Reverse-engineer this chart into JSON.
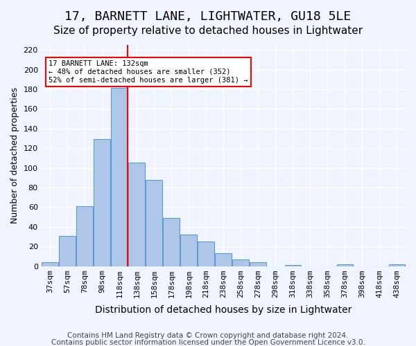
{
  "title1": "17, BARNETT LANE, LIGHTWATER, GU18 5LE",
  "title2": "Size of property relative to detached houses in Lightwater",
  "xlabel": "Distribution of detached houses by size in Lightwater",
  "ylabel": "Number of detached properties",
  "bar_labels": [
    "37sqm",
    "57sqm",
    "78sqm",
    "98sqm",
    "118sqm",
    "138sqm",
    "158sqm",
    "178sqm",
    "198sqm",
    "218sqm",
    "238sqm",
    "258sqm",
    "278sqm",
    "298sqm",
    "318sqm",
    "338sqm",
    "358sqm",
    "378sqm",
    "398sqm",
    "418sqm",
    "438sqm"
  ],
  "bar_values": [
    4,
    31,
    61,
    129,
    181,
    105,
    88,
    49,
    32,
    25,
    13,
    7,
    4,
    0,
    1,
    0,
    0,
    2,
    0,
    0,
    2
  ],
  "bar_color": "#aec6e8",
  "bar_edge_color": "#5b9bd5",
  "vline_x": 4,
  "vline_color": "red",
  "annotation_text": "17 BARNETT LANE: 132sqm\n← 48% of detached houses are smaller (352)\n52% of semi-detached houses are larger (381) →",
  "annotation_box_color": "white",
  "annotation_box_edge_color": "red",
  "ylim": [
    0,
    225
  ],
  "yticks": [
    0,
    20,
    40,
    60,
    80,
    100,
    120,
    140,
    160,
    180,
    200,
    220
  ],
  "footer1": "Contains HM Land Registry data © Crown copyright and database right 2024.",
  "footer2": "Contains public sector information licensed under the Open Government Licence v3.0.",
  "background_color": "#f0f4ff",
  "grid_color": "#ffffff",
  "title1_fontsize": 13,
  "title2_fontsize": 11,
  "xlabel_fontsize": 10,
  "ylabel_fontsize": 9,
  "tick_fontsize": 8,
  "footer_fontsize": 7.5
}
